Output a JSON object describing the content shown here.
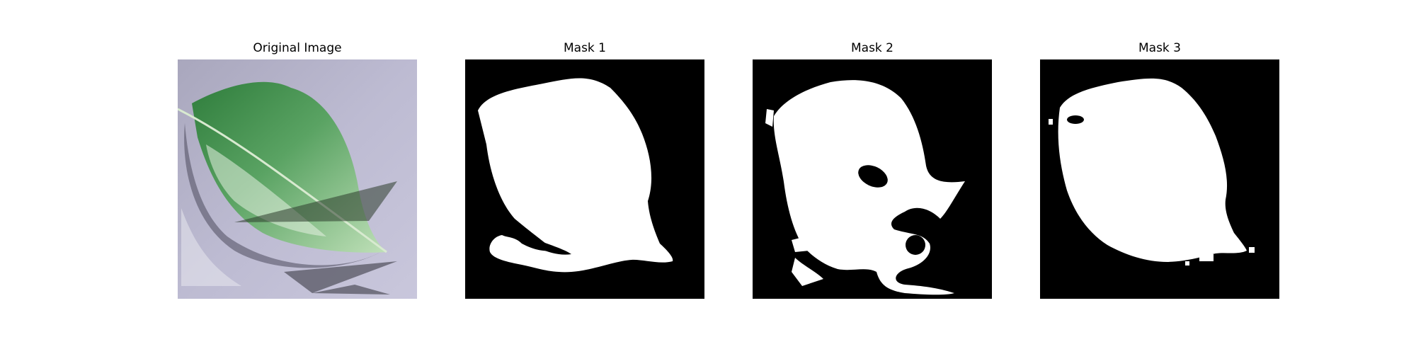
{
  "figure": {
    "panels": [
      {
        "title": "Original Image",
        "kind": "photo"
      },
      {
        "title": "Mask 1",
        "kind": "mask"
      },
      {
        "title": "Mask 2",
        "kind": "mask"
      },
      {
        "title": "Mask 3",
        "kind": "mask"
      }
    ]
  },
  "colors": {
    "background": "#ffffff",
    "mask_bg": "#000000",
    "mask_fg": "#ffffff",
    "photo_bg": "#c3c1d7",
    "leaf_dark": "#2f7d3c",
    "leaf_light": "#9fcf98"
  }
}
